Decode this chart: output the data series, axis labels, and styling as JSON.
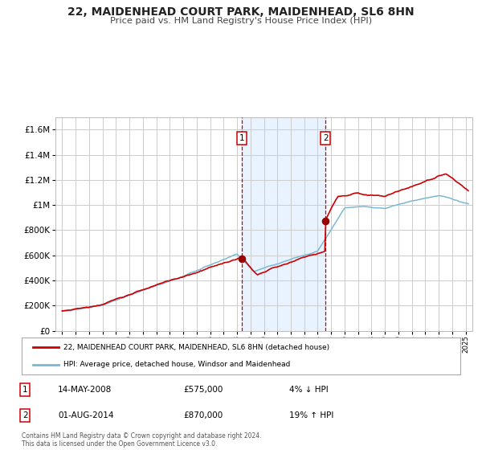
{
  "title": "22, MAIDENHEAD COURT PARK, MAIDENHEAD, SL6 8HN",
  "subtitle": "Price paid vs. HM Land Registry's House Price Index (HPI)",
  "legend_line1": "22, MAIDENHEAD COURT PARK, MAIDENHEAD, SL6 8HN (detached house)",
  "legend_line2": "HPI: Average price, detached house, Windsor and Maidenhead",
  "transaction1_label": "1",
  "transaction1_date": "14-MAY-2008",
  "transaction1_price": "£575,000",
  "transaction1_hpi": "4% ↓ HPI",
  "transaction1_year": 2008.37,
  "transaction1_value": 575000,
  "transaction2_label": "2",
  "transaction2_date": "01-AUG-2014",
  "transaction2_price": "£870,000",
  "transaction2_hpi": "19% ↑ HPI",
  "transaction2_year": 2014.58,
  "transaction2_value": 870000,
  "footer_line1": "Contains HM Land Registry data © Crown copyright and database right 2024.",
  "footer_line2": "This data is licensed under the Open Government Licence v3.0.",
  "ylim": [
    0,
    1700000
  ],
  "yticks": [
    0,
    200000,
    400000,
    600000,
    800000,
    1000000,
    1200000,
    1400000,
    1600000
  ],
  "xlim_start": 1994.5,
  "xlim_end": 2025.5,
  "background_color": "#ffffff",
  "grid_color": "#cccccc",
  "hpi_line_color": "#7ab8d4",
  "price_line_color": "#cc0000",
  "dot_color": "#990000",
  "shading_color": "#ddeeff",
  "dashed_line_color": "#cc0000"
}
